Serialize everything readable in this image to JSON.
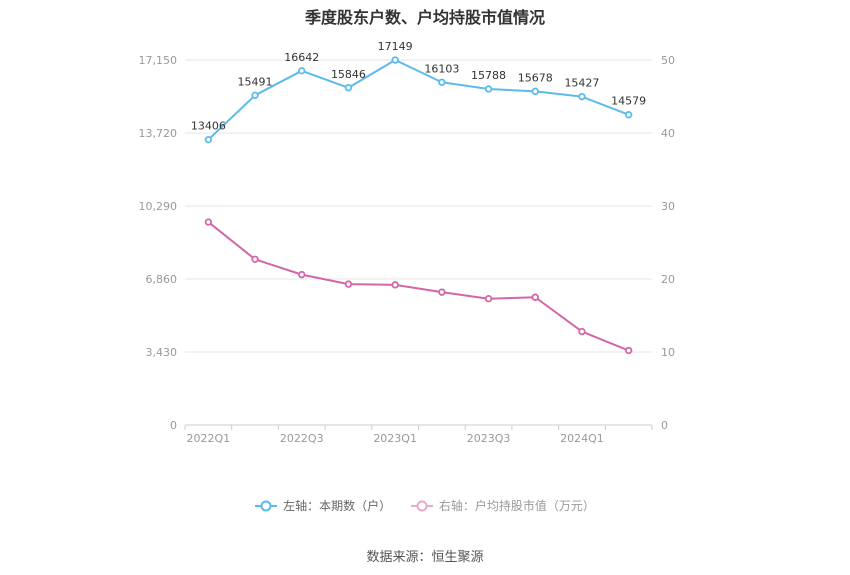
{
  "title": "季度股东户数、户均持股市值情况",
  "source": "数据来源：恒生聚源",
  "colors": {
    "left_series": "#5bbbea",
    "right_series": "#d466a8",
    "grid": "#e6e6e6",
    "axis_text": "#999999"
  },
  "chart_data": {
    "type": "line",
    "title": "季度股东户数、户均持股市值情况",
    "x": [
      "2022Q1",
      "2022Q2",
      "2022Q3",
      "2022Q4",
      "2023Q1",
      "2023Q2",
      "2023Q3",
      "2023Q4",
      "2024Q1",
      "2024Q2"
    ],
    "x_tick_labels": [
      "2022Q1",
      "",
      "2022Q3",
      "",
      "2023Q1",
      "",
      "2023Q3",
      "",
      "2024Q1",
      ""
    ],
    "left_axis": {
      "ticks": [
        0,
        3430,
        6860,
        10290,
        13720,
        17150
      ],
      "tick_labels": [
        "0",
        "3,430",
        "6,860",
        "10,290",
        "13,720",
        "17,150"
      ],
      "range": [
        0,
        17150
      ]
    },
    "right_axis": {
      "ticks": [
        0,
        10,
        20,
        30,
        40,
        50
      ],
      "tick_labels": [
        "0",
        "10",
        "20",
        "30",
        "40",
        "50"
      ],
      "range": [
        0,
        50
      ]
    },
    "grid": true,
    "legend_position": "bottom",
    "series": [
      {
        "name": "左轴：本期数（户）",
        "axis": "left",
        "values": [
          13406,
          15491,
          16642,
          15846,
          17149,
          16103,
          15788,
          15678,
          15427,
          14579
        ],
        "labels": [
          "13406",
          "15491",
          "16642",
          "15846",
          "17149",
          "16103",
          "15788",
          "15678",
          "15427",
          "14579"
        ]
      },
      {
        "name": "右轴：户均持股市值（万元）",
        "axis": "right",
        "values": [
          27.8,
          22.7,
          20.6,
          19.3,
          19.2,
          18.2,
          17.3,
          17.5,
          12.8,
          10.2
        ]
      }
    ]
  }
}
